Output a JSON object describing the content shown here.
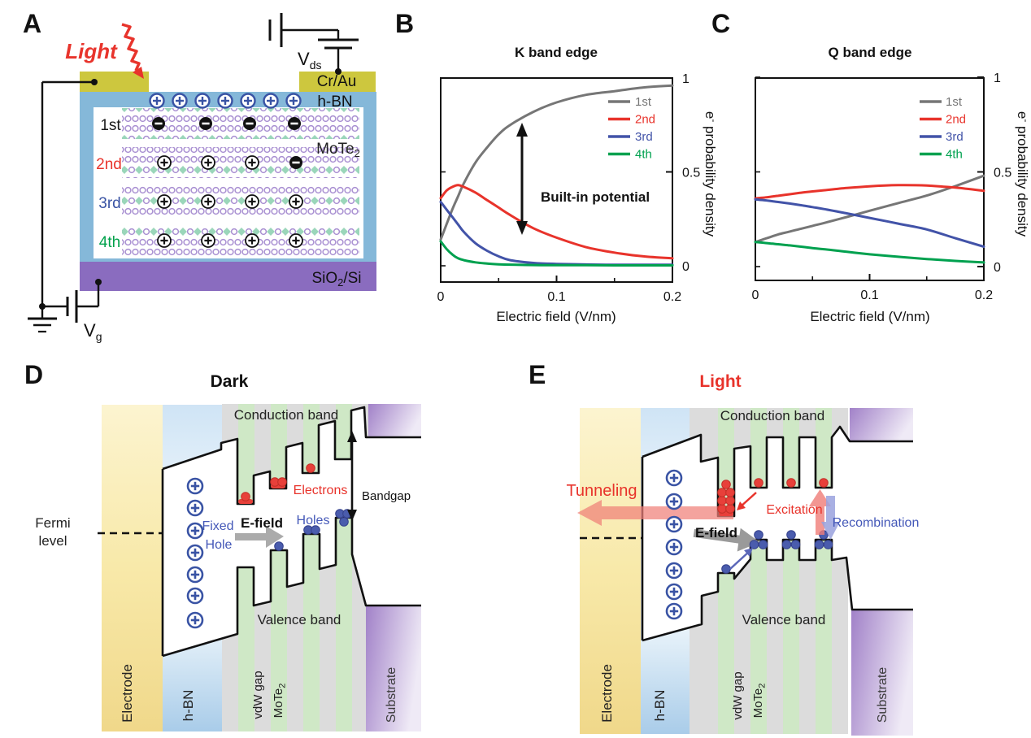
{
  "figure": {
    "background": "#ffffff"
  },
  "colors": {
    "red": "#e8332b",
    "blue": "#3953a4",
    "green": "#00a14b",
    "gray": "#767676",
    "hole_blue": "#4a5cad",
    "electron_red": "#e8403a"
  },
  "panels": {
    "a": {
      "letter": "A",
      "light_label": "Light",
      "vds": {
        "base": "V",
        "sub": "ds"
      },
      "crau": "Cr/Au",
      "hbn": "h-BN",
      "layers": [
        {
          "label": "1st",
          "color": "#1a1a1a",
          "charges": [
            "-",
            "-",
            "-",
            "-"
          ]
        },
        {
          "label": "2nd",
          "color": "#e8332b",
          "charges": [
            "+",
            "+",
            "+",
            "-"
          ]
        },
        {
          "label": "3rd",
          "color": "#3953a4",
          "charges": [
            "+",
            "+",
            "+",
            "+"
          ]
        },
        {
          "label": "4th",
          "color": "#00a14b",
          "charges": [
            "+",
            "+",
            "+",
            "+"
          ]
        }
      ],
      "mote2": {
        "base": "MoTe",
        "sub": "2"
      },
      "sio2": {
        "p1": "SiO",
        "sub": "2",
        "p2": "/Si"
      },
      "vg": {
        "base": "V",
        "sub": "g"
      }
    },
    "b": {
      "letter": "B"
    },
    "c": {
      "letter": "C"
    },
    "d": {
      "letter": "D",
      "title": "Dark",
      "conduction": "Conduction band",
      "valence": "Valence band",
      "electrons": "Electrons",
      "holes": "Holes",
      "efield": "E-field",
      "fixed1": "Fixed",
      "fixed2": "Hole",
      "bandgap": "Bandgap",
      "fermi1": "Fermi",
      "fermi2": "level",
      "electrode": "Electrode",
      "hbn": "h-BN",
      "vdw": "vdW gap",
      "mote2": {
        "base": "MoTe",
        "sub": "2"
      },
      "substrate": "Substrate"
    },
    "e": {
      "letter": "E",
      "title": "Light",
      "conduction": "Conduction band",
      "valence": "Valence band",
      "tunneling": "Tunneling",
      "efield": "E-field",
      "excitation": "Excitation",
      "recombination": "Recombination",
      "electrode": "Electrode",
      "hbn": "h-BN",
      "vdw": "vdW gap",
      "mote2": {
        "base": "MoTe",
        "sub": "2"
      },
      "substrate": "Substrate"
    }
  },
  "chart_data": [
    {
      "type": "line",
      "title": "K band edge",
      "xlabel": "Electric field (V/nm)",
      "ylabel_parts": {
        "pre": "e",
        "sup": "-",
        "post": " probability density"
      },
      "xlim": [
        0,
        0.2
      ],
      "ylim": [
        0,
        1
      ],
      "grid": false,
      "legend_position": "top-right",
      "xticks": [
        {
          "v": 0,
          "label": "0"
        },
        {
          "v": 0.1,
          "label": "0.1"
        },
        {
          "v": 0.2,
          "label": "0.2"
        }
      ],
      "xminor": [
        0.05,
        0.15
      ],
      "yticks": [
        {
          "v": 0,
          "label": "0"
        },
        {
          "v": 0.5,
          "label": "0.5"
        },
        {
          "v": 1,
          "label": "1"
        }
      ],
      "x": [
        0,
        0.005,
        0.01,
        0.015,
        0.02,
        0.03,
        0.04,
        0.05,
        0.06,
        0.08,
        0.1,
        0.125,
        0.15,
        0.175,
        0.2
      ],
      "series": [
        {
          "name": "1st",
          "color": "#767676",
          "values": [
            0.14,
            0.22,
            0.3,
            0.37,
            0.44,
            0.55,
            0.63,
            0.7,
            0.75,
            0.82,
            0.87,
            0.91,
            0.93,
            0.95,
            0.96
          ]
        },
        {
          "name": "2nd",
          "color": "#e8332b",
          "values": [
            0.36,
            0.4,
            0.42,
            0.43,
            0.42,
            0.39,
            0.35,
            0.31,
            0.27,
            0.2,
            0.15,
            0.1,
            0.07,
            0.05,
            0.04
          ]
        },
        {
          "name": "3rd",
          "color": "#4253a8",
          "values": [
            0.34,
            0.3,
            0.26,
            0.22,
            0.18,
            0.12,
            0.08,
            0.05,
            0.03,
            0.015,
            0.01,
            0.007,
            0.005,
            0.005,
            0.005
          ]
        },
        {
          "name": "4th",
          "color": "#00a14f",
          "values": [
            0.13,
            0.09,
            0.06,
            0.04,
            0.03,
            0.018,
            0.012,
            0.008,
            0.006,
            0.004,
            0.003,
            0.003,
            0.002,
            0.002,
            0.002
          ]
        }
      ],
      "annotation": {
        "text": "Built-in potential"
      }
    },
    {
      "type": "line",
      "title": "Q band edge",
      "xlabel": "Electric field (V/nm)",
      "ylabel_parts": {
        "pre": "e",
        "sup": "-",
        "post": " probability density"
      },
      "xlim": [
        0,
        0.2
      ],
      "ylim": [
        0,
        1
      ],
      "grid": false,
      "legend_position": "top-right",
      "xticks": [
        {
          "v": 0,
          "label": "0"
        },
        {
          "v": 0.1,
          "label": "0.1"
        },
        {
          "v": 0.2,
          "label": "0.2"
        }
      ],
      "xminor": [
        0.05,
        0.15
      ],
      "yticks": [
        {
          "v": 0,
          "label": "0"
        },
        {
          "v": 0.5,
          "label": "0.5"
        },
        {
          "v": 1,
          "label": "1"
        }
      ],
      "x": [
        0,
        0.005,
        0.01,
        0.015,
        0.02,
        0.03,
        0.04,
        0.05,
        0.06,
        0.08,
        0.1,
        0.125,
        0.15,
        0.175,
        0.2
      ],
      "series": [
        {
          "name": "1st",
          "color": "#767676",
          "values": [
            0.13,
            0.14,
            0.15,
            0.16,
            0.17,
            0.185,
            0.2,
            0.215,
            0.23,
            0.262,
            0.295,
            0.335,
            0.375,
            0.425,
            0.48
          ]
        },
        {
          "name": "2nd",
          "color": "#e8332b",
          "values": [
            0.36,
            0.363,
            0.366,
            0.37,
            0.374,
            0.382,
            0.39,
            0.397,
            0.403,
            0.415,
            0.424,
            0.43,
            0.428,
            0.417,
            0.4
          ]
        },
        {
          "name": "3rd",
          "color": "#4253a8",
          "values": [
            0.355,
            0.352,
            0.349,
            0.345,
            0.341,
            0.333,
            0.324,
            0.314,
            0.304,
            0.281,
            0.257,
            0.227,
            0.196,
            0.15,
            0.105
          ]
        },
        {
          "name": "4th",
          "color": "#00a14f",
          "values": [
            0.13,
            0.127,
            0.124,
            0.121,
            0.118,
            0.112,
            0.105,
            0.098,
            0.092,
            0.078,
            0.065,
            0.052,
            0.04,
            0.03,
            0.022
          ]
        }
      ]
    }
  ]
}
